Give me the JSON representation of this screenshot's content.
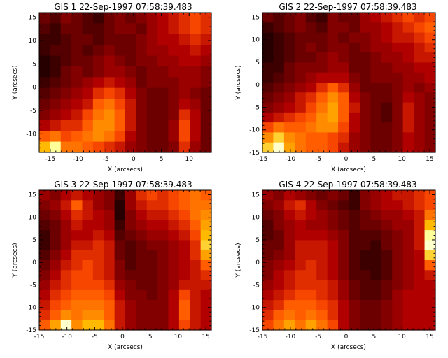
{
  "colors": {
    "background": "#ffffff",
    "axis": "#000000",
    "colormap": "red-temperature"
  },
  "chart_data": [
    {
      "type": "heatmap",
      "title": "GIS 1 22-Sep-1997 07:58:39.483",
      "xlabel": "X (arcsecs)",
      "ylabel": "Y (arcsecs)",
      "xlim": [
        -17,
        14
      ],
      "ylim": [
        -14,
        16
      ],
      "xticks": [
        -15,
        -10,
        -5,
        0,
        5,
        10
      ],
      "yticks": [
        -10,
        -5,
        0,
        5,
        10,
        15
      ],
      "grid": false,
      "z": [
        [
          0.2,
          0.15,
          0.25,
          0.2,
          0.15,
          0.1,
          0.2,
          0.25,
          0.2,
          0.25,
          0.3,
          0.35,
          0.4,
          0.45,
          0.5,
          0.45
        ],
        [
          0.15,
          0.1,
          0.2,
          0.2,
          0.15,
          0.15,
          0.2,
          0.25,
          0.25,
          0.2,
          0.3,
          0.35,
          0.4,
          0.45,
          0.5,
          0.45
        ],
        [
          0.1,
          0.1,
          0.15,
          0.2,
          0.2,
          0.15,
          0.2,
          0.2,
          0.2,
          0.25,
          0.3,
          0.35,
          0.35,
          0.4,
          0.45,
          0.4
        ],
        [
          0.1,
          0.15,
          0.15,
          0.2,
          0.15,
          0.2,
          0.25,
          0.2,
          0.2,
          0.25,
          0.3,
          0.3,
          0.35,
          0.35,
          0.4,
          0.35
        ],
        [
          0.05,
          0.1,
          0.15,
          0.2,
          0.2,
          0.25,
          0.3,
          0.25,
          0.2,
          0.25,
          0.25,
          0.3,
          0.3,
          0.35,
          0.35,
          0.3
        ],
        [
          0.05,
          0.1,
          0.2,
          0.25,
          0.2,
          0.25,
          0.3,
          0.3,
          0.25,
          0.2,
          0.25,
          0.25,
          0.3,
          0.3,
          0.3,
          0.25
        ],
        [
          0.1,
          0.15,
          0.2,
          0.25,
          0.3,
          0.35,
          0.4,
          0.35,
          0.3,
          0.2,
          0.25,
          0.25,
          0.25,
          0.3,
          0.3,
          0.25
        ],
        [
          0.15,
          0.2,
          0.25,
          0.3,
          0.35,
          0.45,
          0.5,
          0.45,
          0.35,
          0.25,
          0.2,
          0.2,
          0.25,
          0.3,
          0.25,
          0.2
        ],
        [
          0.2,
          0.25,
          0.3,
          0.35,
          0.4,
          0.55,
          0.6,
          0.5,
          0.4,
          0.25,
          0.2,
          0.2,
          0.25,
          0.35,
          0.3,
          0.2
        ],
        [
          0.25,
          0.3,
          0.35,
          0.4,
          0.5,
          0.6,
          0.65,
          0.55,
          0.4,
          0.25,
          0.2,
          0.2,
          0.25,
          0.45,
          0.35,
          0.2
        ],
        [
          0.35,
          0.4,
          0.45,
          0.45,
          0.55,
          0.65,
          0.65,
          0.55,
          0.4,
          0.25,
          0.2,
          0.2,
          0.3,
          0.5,
          0.35,
          0.2
        ],
        [
          0.55,
          0.6,
          0.5,
          0.55,
          0.6,
          0.65,
          0.6,
          0.5,
          0.35,
          0.25,
          0.2,
          0.2,
          0.3,
          0.5,
          0.35,
          0.2
        ],
        [
          0.75,
          0.9,
          0.6,
          0.6,
          0.55,
          0.5,
          0.45,
          0.4,
          0.3,
          0.25,
          0.2,
          0.2,
          0.25,
          0.45,
          0.3,
          0.2
        ]
      ]
    },
    {
      "type": "heatmap",
      "title": "GIS 2 22-Sep-1997 07:58:39.483",
      "xlabel": "X (arcsecs)",
      "ylabel": "Y (arcsecs)",
      "xlim": [
        -15,
        16
      ],
      "ylim": [
        -15,
        16
      ],
      "xticks": [
        -15,
        -10,
        -5,
        0,
        5,
        10,
        15
      ],
      "yticks": [
        -15,
        -10,
        -5,
        0,
        5,
        10,
        15
      ],
      "grid": false,
      "z": [
        [
          0.2,
          0.15,
          0.2,
          0.25,
          0.15,
          0.1,
          0.25,
          0.2,
          0.2,
          0.3,
          0.35,
          0.4,
          0.45,
          0.5,
          0.45,
          0.5
        ],
        [
          0.1,
          0.15,
          0.2,
          0.25,
          0.2,
          0.15,
          0.25,
          0.25,
          0.2,
          0.3,
          0.3,
          0.35,
          0.4,
          0.45,
          0.5,
          0.55
        ],
        [
          0.05,
          0.1,
          0.15,
          0.2,
          0.2,
          0.2,
          0.25,
          0.2,
          0.25,
          0.25,
          0.3,
          0.35,
          0.4,
          0.4,
          0.45,
          0.5
        ],
        [
          0.05,
          0.1,
          0.15,
          0.2,
          0.25,
          0.2,
          0.25,
          0.25,
          0.2,
          0.25,
          0.3,
          0.3,
          0.35,
          0.35,
          0.4,
          0.45
        ],
        [
          0.05,
          0.1,
          0.15,
          0.2,
          0.2,
          0.25,
          0.3,
          0.25,
          0.2,
          0.2,
          0.25,
          0.3,
          0.3,
          0.35,
          0.4,
          0.4
        ],
        [
          0.1,
          0.1,
          0.2,
          0.25,
          0.25,
          0.25,
          0.3,
          0.3,
          0.2,
          0.2,
          0.25,
          0.25,
          0.3,
          0.3,
          0.35,
          0.35
        ],
        [
          0.1,
          0.15,
          0.2,
          0.25,
          0.3,
          0.35,
          0.35,
          0.35,
          0.25,
          0.2,
          0.25,
          0.25,
          0.25,
          0.3,
          0.3,
          0.35
        ],
        [
          0.15,
          0.2,
          0.25,
          0.3,
          0.35,
          0.45,
          0.55,
          0.45,
          0.3,
          0.2,
          0.2,
          0.2,
          0.25,
          0.3,
          0.25,
          0.3
        ],
        [
          0.2,
          0.25,
          0.3,
          0.4,
          0.45,
          0.55,
          0.65,
          0.55,
          0.35,
          0.25,
          0.2,
          0.2,
          0.25,
          0.35,
          0.3,
          0.25
        ],
        [
          0.25,
          0.3,
          0.35,
          0.4,
          0.5,
          0.6,
          0.7,
          0.55,
          0.4,
          0.25,
          0.2,
          0.15,
          0.25,
          0.4,
          0.3,
          0.25
        ],
        [
          0.35,
          0.4,
          0.45,
          0.5,
          0.55,
          0.65,
          0.7,
          0.55,
          0.35,
          0.25,
          0.2,
          0.15,
          0.25,
          0.4,
          0.3,
          0.25
        ],
        [
          0.5,
          0.6,
          0.55,
          0.55,
          0.6,
          0.65,
          0.65,
          0.5,
          0.35,
          0.25,
          0.2,
          0.2,
          0.25,
          0.4,
          0.3,
          0.25
        ],
        [
          0.65,
          0.8,
          0.65,
          0.6,
          0.55,
          0.55,
          0.5,
          0.45,
          0.3,
          0.25,
          0.2,
          0.2,
          0.25,
          0.35,
          0.3,
          0.25
        ],
        [
          0.8,
          0.95,
          0.7,
          0.6,
          0.55,
          0.55,
          0.5,
          0.4,
          0.3,
          0.25,
          0.2,
          0.2,
          0.25,
          0.35,
          0.3,
          0.25
        ]
      ]
    },
    {
      "type": "heatmap",
      "title": "GIS 3 22-Sep-1997 07:58:39.483",
      "xlabel": "X (arcsecs)",
      "ylabel": "Y (arcsecs)",
      "xlim": [
        -15,
        16
      ],
      "ylim": [
        -15,
        16
      ],
      "xticks": [
        -15,
        -10,
        -5,
        0,
        5,
        10,
        15
      ],
      "yticks": [
        -15,
        -10,
        -5,
        0,
        5,
        10,
        15
      ],
      "grid": false,
      "z": [
        [
          0.3,
          0.25,
          0.35,
          0.4,
          0.35,
          0.3,
          0.25,
          0.1,
          0.3,
          0.45,
          0.5,
          0.45,
          0.5,
          0.55,
          0.6,
          0.55
        ],
        [
          0.25,
          0.3,
          0.4,
          0.55,
          0.4,
          0.3,
          0.25,
          0.05,
          0.3,
          0.4,
          0.45,
          0.45,
          0.5,
          0.55,
          0.6,
          0.6
        ],
        [
          0.2,
          0.25,
          0.35,
          0.45,
          0.4,
          0.35,
          0.3,
          0.05,
          0.25,
          0.35,
          0.4,
          0.4,
          0.45,
          0.5,
          0.6,
          0.65
        ],
        [
          0.15,
          0.2,
          0.3,
          0.4,
          0.35,
          0.35,
          0.3,
          0.1,
          0.25,
          0.3,
          0.35,
          0.35,
          0.4,
          0.45,
          0.55,
          0.7
        ],
        [
          0.1,
          0.2,
          0.3,
          0.35,
          0.35,
          0.4,
          0.35,
          0.15,
          0.2,
          0.25,
          0.3,
          0.3,
          0.35,
          0.4,
          0.5,
          0.75
        ],
        [
          0.1,
          0.2,
          0.3,
          0.4,
          0.4,
          0.45,
          0.4,
          0.2,
          0.15,
          0.2,
          0.25,
          0.25,
          0.3,
          0.35,
          0.45,
          0.8
        ],
        [
          0.15,
          0.25,
          0.35,
          0.45,
          0.45,
          0.45,
          0.4,
          0.2,
          0.15,
          0.2,
          0.2,
          0.25,
          0.3,
          0.35,
          0.45,
          0.7
        ],
        [
          0.2,
          0.3,
          0.4,
          0.45,
          0.5,
          0.45,
          0.4,
          0.25,
          0.15,
          0.2,
          0.2,
          0.25,
          0.3,
          0.35,
          0.4,
          0.55
        ],
        [
          0.25,
          0.35,
          0.45,
          0.5,
          0.5,
          0.45,
          0.4,
          0.25,
          0.2,
          0.2,
          0.2,
          0.25,
          0.3,
          0.35,
          0.4,
          0.45
        ],
        [
          0.3,
          0.4,
          0.45,
          0.5,
          0.5,
          0.5,
          0.45,
          0.3,
          0.25,
          0.2,
          0.2,
          0.25,
          0.3,
          0.4,
          0.4,
          0.4
        ],
        [
          0.35,
          0.45,
          0.5,
          0.55,
          0.55,
          0.55,
          0.5,
          0.35,
          0.25,
          0.25,
          0.2,
          0.25,
          0.35,
          0.5,
          0.4,
          0.35
        ],
        [
          0.4,
          0.5,
          0.55,
          0.6,
          0.6,
          0.6,
          0.55,
          0.4,
          0.3,
          0.25,
          0.25,
          0.25,
          0.35,
          0.55,
          0.4,
          0.35
        ],
        [
          0.45,
          0.55,
          0.65,
          0.6,
          0.65,
          0.65,
          0.55,
          0.4,
          0.3,
          0.25,
          0.25,
          0.25,
          0.35,
          0.55,
          0.4,
          0.35
        ],
        [
          0.55,
          0.7,
          0.95,
          0.65,
          0.75,
          0.75,
          0.6,
          0.4,
          0.3,
          0.25,
          0.25,
          0.25,
          0.35,
          0.5,
          0.4,
          0.35
        ]
      ]
    },
    {
      "type": "heatmap",
      "title": "GIS 4 22-Sep-1997 07:58:39.483",
      "xlabel": "X (arcsecs)",
      "ylabel": "Y (arcsecs)",
      "xlim": [
        -15,
        16
      ],
      "ylim": [
        -15,
        16
      ],
      "xticks": [
        -15,
        -10,
        -5,
        0,
        5,
        10,
        15
      ],
      "yticks": [
        -15,
        -10,
        -5,
        0,
        5,
        10,
        15
      ],
      "grid": false,
      "z": [
        [
          0.3,
          0.25,
          0.35,
          0.3,
          0.25,
          0.2,
          0.25,
          0.2,
          0.1,
          0.25,
          0.3,
          0.35,
          0.4,
          0.4,
          0.45,
          0.5
        ],
        [
          0.25,
          0.3,
          0.4,
          0.45,
          0.35,
          0.25,
          0.2,
          0.15,
          0.1,
          0.25,
          0.3,
          0.35,
          0.35,
          0.4,
          0.45,
          0.5
        ],
        [
          0.2,
          0.25,
          0.35,
          0.4,
          0.35,
          0.3,
          0.25,
          0.2,
          0.15,
          0.2,
          0.25,
          0.3,
          0.3,
          0.35,
          0.4,
          0.6
        ],
        [
          0.15,
          0.25,
          0.3,
          0.35,
          0.3,
          0.3,
          0.25,
          0.2,
          0.15,
          0.2,
          0.2,
          0.25,
          0.3,
          0.3,
          0.4,
          0.75
        ],
        [
          0.15,
          0.2,
          0.3,
          0.35,
          0.35,
          0.35,
          0.3,
          0.25,
          0.15,
          0.15,
          0.15,
          0.2,
          0.25,
          0.3,
          0.4,
          0.9
        ],
        [
          0.2,
          0.2,
          0.3,
          0.4,
          0.4,
          0.4,
          0.35,
          0.25,
          0.15,
          0.15,
          0.1,
          0.2,
          0.25,
          0.3,
          0.4,
          0.95
        ],
        [
          0.2,
          0.25,
          0.3,
          0.4,
          0.4,
          0.4,
          0.35,
          0.25,
          0.15,
          0.1,
          0.1,
          0.15,
          0.25,
          0.3,
          0.35,
          0.8
        ],
        [
          0.25,
          0.3,
          0.35,
          0.4,
          0.45,
          0.4,
          0.35,
          0.25,
          0.15,
          0.1,
          0.1,
          0.15,
          0.25,
          0.3,
          0.35,
          0.55
        ],
        [
          0.25,
          0.35,
          0.4,
          0.45,
          0.45,
          0.4,
          0.35,
          0.25,
          0.15,
          0.15,
          0.1,
          0.15,
          0.25,
          0.3,
          0.35,
          0.4
        ],
        [
          0.3,
          0.35,
          0.4,
          0.45,
          0.45,
          0.45,
          0.4,
          0.3,
          0.2,
          0.15,
          0.15,
          0.2,
          0.25,
          0.3,
          0.35,
          0.35
        ],
        [
          0.35,
          0.4,
          0.45,
          0.5,
          0.5,
          0.45,
          0.4,
          0.3,
          0.2,
          0.15,
          0.15,
          0.2,
          0.3,
          0.35,
          0.35,
          0.35
        ],
        [
          0.4,
          0.45,
          0.55,
          0.55,
          0.55,
          0.5,
          0.45,
          0.35,
          0.25,
          0.2,
          0.2,
          0.25,
          0.3,
          0.35,
          0.35,
          0.35
        ],
        [
          0.45,
          0.55,
          0.6,
          0.55,
          0.6,
          0.55,
          0.45,
          0.35,
          0.25,
          0.2,
          0.2,
          0.25,
          0.3,
          0.35,
          0.35,
          0.35
        ],
        [
          0.5,
          0.6,
          0.7,
          0.6,
          0.7,
          0.6,
          0.5,
          0.35,
          0.25,
          0.2,
          0.2,
          0.25,
          0.3,
          0.35,
          0.35,
          0.35
        ]
      ]
    }
  ]
}
